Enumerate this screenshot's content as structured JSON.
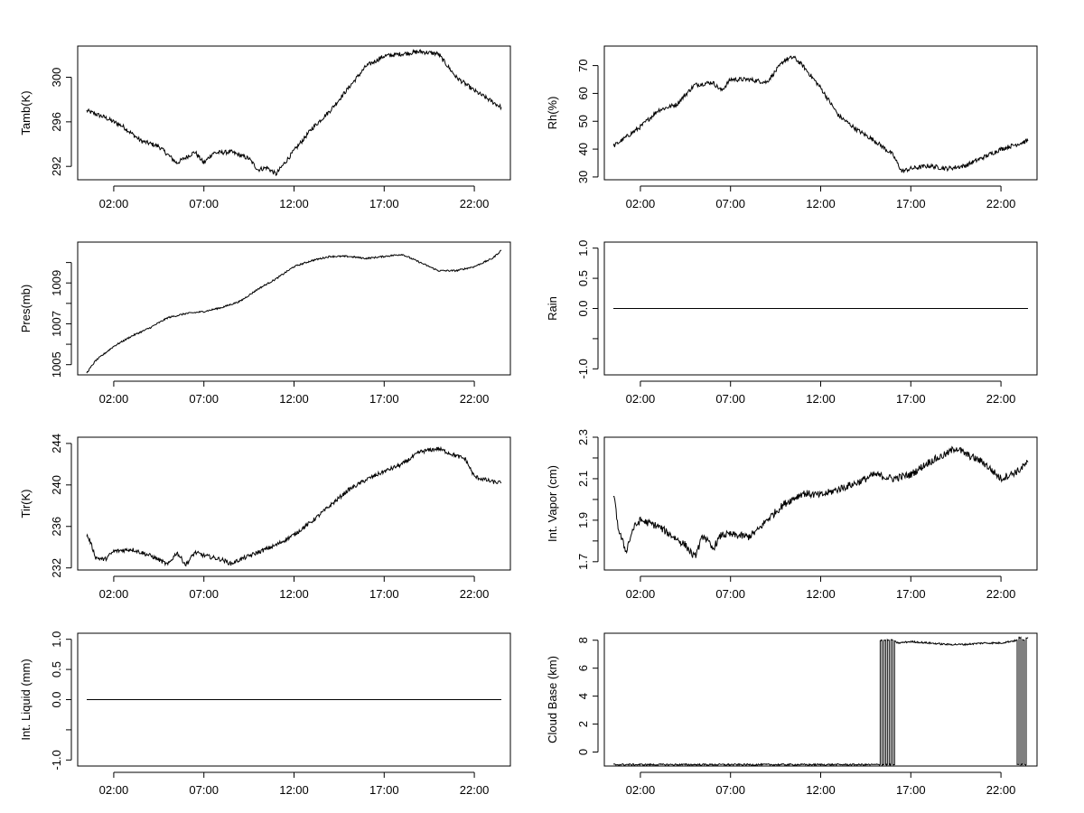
{
  "figure": {
    "x_ticks": [
      "02:00",
      "07:00",
      "12:00",
      "17:00",
      "22:00"
    ],
    "x_tick_hours": [
      2,
      7,
      12,
      17,
      22
    ],
    "x_range_hours": [
      0,
      24
    ]
  },
  "chart_data": [
    {
      "type": "line",
      "ylabel": "Tamb(K)",
      "ylim": [
        290.8,
        302.8
      ],
      "y_ticks": [
        292,
        296,
        300
      ],
      "y_tick_labels": [
        "292",
        "296",
        "300"
      ],
      "line_color": "#000000",
      "x_unit": "hours",
      "x": [
        0.5,
        1.5,
        2.5,
        3.5,
        4.5,
        5.5,
        6.5,
        7.0,
        7.5,
        8.5,
        9.5,
        10.0,
        10.5,
        11.0,
        12.0,
        13.0,
        14.0,
        15.0,
        16.0,
        17.0,
        18.0,
        19.0,
        20.0,
        21.0,
        22.0,
        23.5
      ],
      "y": [
        297.0,
        296.4,
        295.6,
        294.3,
        293.8,
        292.3,
        293.3,
        292.3,
        293.2,
        293.3,
        292.7,
        291.7,
        291.9,
        291.3,
        293.4,
        295.4,
        297.0,
        299.0,
        301.0,
        301.9,
        302.1,
        302.3,
        302.1,
        300.0,
        298.8,
        297.3
      ],
      "noise": 0.2
    },
    {
      "type": "line",
      "ylabel": "Rh(%)",
      "ylim": [
        29,
        77
      ],
      "y_ticks": [
        30,
        40,
        50,
        60,
        70
      ],
      "y_tick_labels": [
        "30",
        "40",
        "50",
        "60",
        "70"
      ],
      "line_color": "#000000",
      "x_unit": "hours",
      "x": [
        0.5,
        2.0,
        3.0,
        4.0,
        5.0,
        6.0,
        6.5,
        7.0,
        8.0,
        9.0,
        10.0,
        10.5,
        11.0,
        12.0,
        13.0,
        14.0,
        15.0,
        16.0,
        16.5,
        17.0,
        18.0,
        19.0,
        20.0,
        21.0,
        22.0,
        23.5
      ],
      "y": [
        41,
        48,
        54,
        56,
        63,
        64,
        61,
        65,
        65,
        64,
        72,
        73,
        70,
        62,
        52,
        47,
        43,
        38,
        32,
        33,
        34,
        33,
        34,
        37,
        40,
        43
      ],
      "noise": 0.8
    },
    {
      "type": "line",
      "ylabel": "Pres(mb)",
      "ylim": [
        1004.5,
        1011.0
      ],
      "y_ticks": [
        1005,
        1006,
        1007,
        1008,
        1009,
        1010
      ],
      "y_tick_labels": [
        "1005",
        "",
        "1007",
        "",
        "1009",
        ""
      ],
      "line_color": "#000000",
      "x_unit": "hours",
      "x": [
        0.5,
        1.0,
        2.0,
        3.0,
        4.0,
        5.0,
        6.0,
        7.0,
        8.0,
        9.0,
        10.0,
        11.0,
        12.0,
        13.0,
        14.0,
        15.0,
        16.0,
        17.0,
        18.0,
        19.0,
        20.0,
        21.0,
        22.0,
        23.0,
        23.5
      ],
      "y": [
        1004.6,
        1005.2,
        1005.9,
        1006.4,
        1006.8,
        1007.3,
        1007.5,
        1007.6,
        1007.8,
        1008.1,
        1008.7,
        1009.2,
        1009.8,
        1010.1,
        1010.3,
        1010.3,
        1010.2,
        1010.3,
        1010.4,
        1010.0,
        1009.6,
        1009.6,
        1009.8,
        1010.2,
        1010.6
      ],
      "noise": 0.04
    },
    {
      "type": "line",
      "ylabel": "Rain",
      "ylim": [
        -1.1,
        1.1
      ],
      "y_ticks": [
        -1.0,
        -0.5,
        0.0,
        0.5,
        1.0
      ],
      "y_tick_labels": [
        "-1.0",
        "",
        "0.0",
        "0.5",
        "1.0"
      ],
      "line_color": "#000000",
      "x_unit": "hours",
      "x": [
        0.5,
        23.5
      ],
      "y": [
        0.0,
        0.0
      ],
      "noise": 0
    },
    {
      "type": "line",
      "ylabel": "Tir(K)",
      "ylim": [
        231.8,
        244.6
      ],
      "y_ticks": [
        232,
        236,
        240,
        244
      ],
      "y_tick_labels": [
        "232",
        "236",
        "240",
        "244"
      ],
      "line_color": "#000000",
      "x_unit": "hours",
      "x": [
        0.5,
        0.7,
        1.0,
        1.5,
        2.0,
        3.0,
        4.0,
        4.5,
        5.0,
        5.5,
        6.0,
        6.5,
        7.0,
        8.0,
        8.5,
        9.0,
        10.0,
        11.0,
        12.0,
        13.0,
        14.0,
        15.0,
        16.0,
        17.0,
        18.0,
        19.0,
        20.0,
        21.0,
        21.5,
        22.0,
        23.0,
        23.5
      ],
      "y": [
        235.2,
        234.5,
        233.0,
        232.8,
        233.6,
        233.8,
        233.2,
        232.8,
        232.3,
        233.5,
        232.3,
        233.5,
        233.2,
        232.8,
        232.4,
        232.8,
        233.5,
        234.2,
        235.2,
        236.5,
        238.0,
        239.5,
        240.5,
        241.3,
        242.0,
        243.2,
        243.5,
        242.8,
        242.5,
        240.8,
        240.3,
        240.2
      ],
      "noise": 0.2
    },
    {
      "type": "line",
      "ylabel": "Int. Vapor (cm)",
      "ylim": [
        1.66,
        2.3
      ],
      "y_ticks": [
        1.7,
        1.8,
        1.9,
        2.0,
        2.1,
        2.2,
        2.3
      ],
      "y_tick_labels": [
        "1.7",
        "",
        "1.9",
        "",
        "2.1",
        "",
        "2.3"
      ],
      "line_color": "#000000",
      "x_unit": "hours",
      "x": [
        0.5,
        0.8,
        1.2,
        1.6,
        2.0,
        3.0,
        4.0,
        4.5,
        5.0,
        5.5,
        6.0,
        6.5,
        7.0,
        8.0,
        8.5,
        9.0,
        10.0,
        11.0,
        12.0,
        13.0,
        14.0,
        15.0,
        16.0,
        17.0,
        18.0,
        19.0,
        19.5,
        20.0,
        21.0,
        22.0,
        23.0,
        23.5
      ],
      "y": [
        2.03,
        1.85,
        1.75,
        1.86,
        1.9,
        1.87,
        1.81,
        1.78,
        1.72,
        1.83,
        1.76,
        1.83,
        1.83,
        1.82,
        1.85,
        1.9,
        1.98,
        2.03,
        2.02,
        2.05,
        2.08,
        2.12,
        2.1,
        2.12,
        2.18,
        2.22,
        2.25,
        2.22,
        2.18,
        2.1,
        2.14,
        2.18
      ],
      "noise": 0.018
    },
    {
      "type": "line",
      "ylabel": "Int. Liquid (mm)",
      "ylim": [
        -1.1,
        1.1
      ],
      "y_ticks": [
        -1.0,
        -0.5,
        0.0,
        0.5,
        1.0
      ],
      "y_tick_labels": [
        "-1.0",
        "",
        "0.0",
        "0.5",
        "1.0"
      ],
      "line_color": "#000000",
      "x_unit": "hours",
      "x": [
        0.5,
        23.5
      ],
      "y": [
        0.0,
        0.0
      ],
      "noise": 0
    },
    {
      "type": "line",
      "ylabel": "Cloud Base (km)",
      "ylim": [
        -1.0,
        8.5
      ],
      "y_ticks": [
        0,
        2,
        4,
        6,
        8
      ],
      "y_tick_labels": [
        "0",
        "2",
        "4",
        "6",
        "8"
      ],
      "line_color": "#000000",
      "x_unit": "hours",
      "x": [
        0.5,
        15.3,
        15.3,
        15.4,
        15.4,
        15.5,
        15.5,
        15.6,
        15.6,
        15.7,
        15.7,
        15.8,
        15.8,
        15.9,
        15.9,
        16.0,
        16.0,
        16.1,
        16.1,
        16.3,
        17.0,
        18.0,
        19.0,
        20.0,
        21.0,
        22.0,
        22.9,
        22.9,
        23.0,
        23.0,
        23.1,
        23.1,
        23.2,
        23.2,
        23.3,
        23.3,
        23.4,
        23.4,
        23.5
      ],
      "y": [
        -0.9,
        -0.9,
        8.0,
        8.0,
        -0.9,
        -0.9,
        8.0,
        8.0,
        -0.9,
        -0.9,
        8.0,
        8.0,
        -0.9,
        -0.9,
        8.0,
        8.0,
        -0.9,
        -0.9,
        7.9,
        7.8,
        7.9,
        7.8,
        7.7,
        7.7,
        7.8,
        7.8,
        8.0,
        -0.9,
        -0.9,
        8.2,
        8.2,
        -0.9,
        -0.9,
        8.0,
        8.0,
        -0.9,
        -0.9,
        8.2,
        8.2
      ],
      "noise": 0.06
    }
  ]
}
